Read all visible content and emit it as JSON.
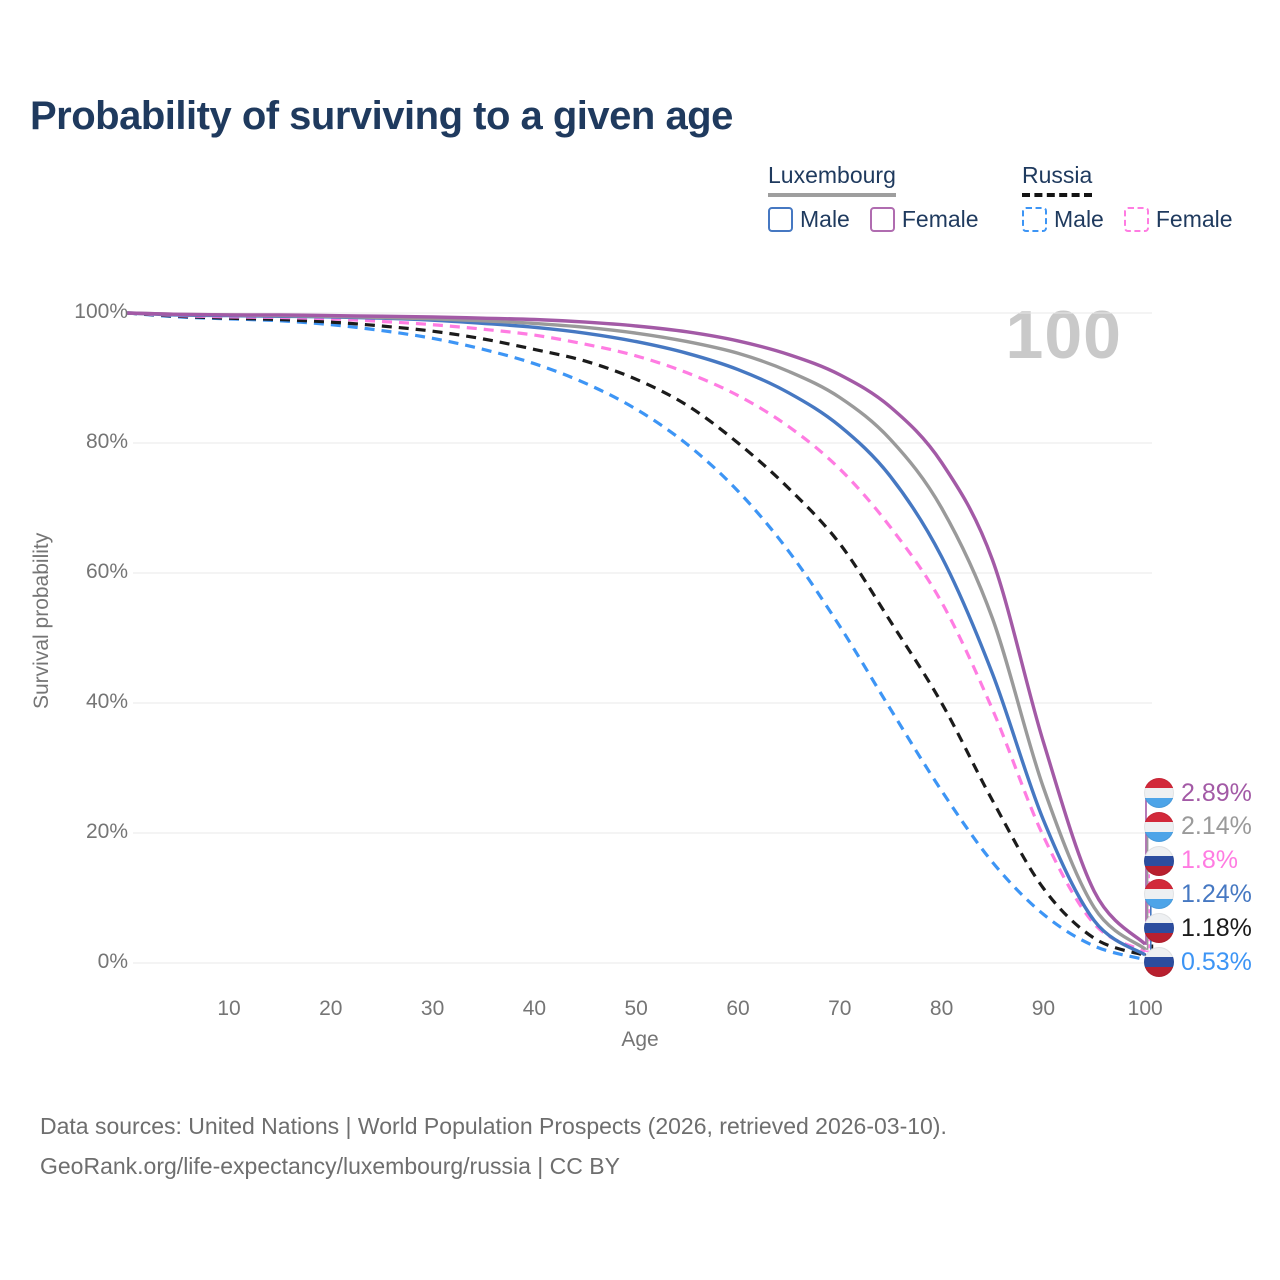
{
  "title": "Probability of surviving to a given age",
  "watermark": "100",
  "legend": {
    "groups": [
      {
        "label": "Luxembourg",
        "line_style": "solid",
        "underline_color": "#9e9e9e",
        "items": [
          {
            "label": "Male",
            "color": "#4678c2"
          },
          {
            "label": "Female",
            "color": "#b06cb0"
          }
        ]
      },
      {
        "label": "Russia",
        "line_style": "dashed",
        "underline_color": "#141414",
        "items": [
          {
            "label": "Male",
            "color": "#3d95f5"
          },
          {
            "label": "Female",
            "color": "#ff7ce2"
          }
        ]
      }
    ]
  },
  "axes": {
    "y_label": "Survival probability",
    "x_label": "Age",
    "y_ticks": [
      "100%",
      "80%",
      "60%",
      "40%",
      "20%",
      "0%"
    ],
    "y_tick_values": [
      100,
      80,
      60,
      40,
      20,
      0
    ],
    "x_ticks": [
      10,
      20,
      30,
      40,
      50,
      60,
      70,
      80,
      90,
      100
    ]
  },
  "chart_data": {
    "type": "line",
    "title": "Probability of surviving to a given age",
    "xlabel": "Age",
    "ylabel": "Survival probability",
    "xlim": [
      0,
      100
    ],
    "ylim": [
      0,
      100
    ],
    "grid": "horizontal",
    "legend_position": "top-right",
    "x": [
      0,
      5,
      10,
      15,
      20,
      25,
      30,
      35,
      40,
      45,
      50,
      55,
      60,
      65,
      70,
      75,
      80,
      85,
      90,
      95,
      100
    ],
    "series": [
      {
        "name": "Russia Male",
        "country": "russia",
        "sex": "male",
        "color": "#3d95f5",
        "dash": true,
        "end_label": "0.53%",
        "values": [
          100,
          99.4,
          99.1,
          98.8,
          98.2,
          97.3,
          96.1,
          94.4,
          92.2,
          89.2,
          85.2,
          79.8,
          72.6,
          63.3,
          51.8,
          39,
          26.5,
          15.5,
          7.5,
          2.6,
          0.53
        ]
      },
      {
        "name": "Russia Total",
        "country": "russia",
        "sex": "both",
        "color": "#1b1b1b",
        "dash": true,
        "end_label": "1.18%",
        "values": [
          100,
          99.5,
          99.2,
          99,
          98.6,
          98,
          97.2,
          96,
          94.4,
          92.6,
          89.8,
          85.8,
          80,
          73,
          64.5,
          52.5,
          40,
          25,
          11.5,
          3.8,
          1.18
        ]
      },
      {
        "name": "Russia Female",
        "country": "russia",
        "sex": "female",
        "color": "#ff7ce2",
        "dash": true,
        "end_label": "1.8%",
        "values": [
          100,
          99.6,
          99.4,
          99.3,
          99.1,
          98.7,
          98.2,
          97.5,
          96.6,
          95.2,
          93.4,
          90.8,
          87.3,
          82.5,
          76,
          67,
          55.5,
          39,
          19.5,
          6,
          1.8
        ]
      },
      {
        "name": "Luxembourg Male",
        "country": "luxembourg",
        "sex": "male",
        "color": "#4678c2",
        "dash": false,
        "end_label": "1.24%",
        "values": [
          100,
          99.7,
          99.6,
          99.5,
          99.4,
          99.2,
          98.9,
          98.4,
          97.8,
          96.9,
          95.6,
          93.8,
          91.3,
          87.7,
          82.6,
          74.8,
          62.5,
          44.5,
          22,
          6.5,
          1.24
        ]
      },
      {
        "name": "Luxembourg Total",
        "country": "luxembourg",
        "sex": "both",
        "color": "#9a9a9a",
        "dash": false,
        "end_label": "2.14%",
        "values": [
          100,
          99.8,
          99.7,
          99.6,
          99.5,
          99.3,
          99.1,
          98.8,
          98.4,
          97.8,
          96.9,
          95.6,
          93.8,
          91,
          87,
          80.5,
          70,
          53,
          27,
          8.5,
          2.14
        ]
      },
      {
        "name": "Luxembourg Female",
        "country": "luxembourg",
        "sex": "female",
        "color": "#a35aa6",
        "dash": false,
        "end_label": "2.89%",
        "values": [
          100,
          99.8,
          99.7,
          99.7,
          99.6,
          99.5,
          99.4,
          99.2,
          99,
          98.6,
          98,
          97.1,
          95.7,
          93.6,
          90.5,
          85.5,
          77,
          62,
          34,
          11,
          2.89
        ]
      }
    ]
  },
  "source": {
    "line1": "Data sources: United Nations | World Population Prospects (2026, retrieved 2026-03-10).",
    "line2": "GeoRank.org/life-expectancy/luxembourg/russia | CC BY"
  }
}
